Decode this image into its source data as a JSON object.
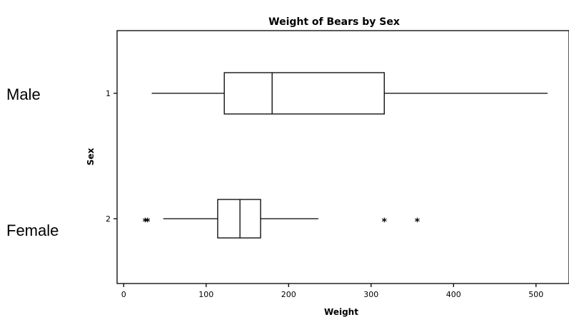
{
  "chart_data": {
    "type": "boxplot",
    "orientation": "horizontal",
    "title": "Weight of Bears by Sex",
    "xlabel": "Weight",
    "ylabel": "Sex",
    "xlim": [
      -8,
      540
    ],
    "xticks": [
      0,
      100,
      200,
      300,
      400,
      500
    ],
    "grid": false,
    "categories": [
      "1",
      "2"
    ],
    "annotations": [
      "Male",
      "Female"
    ],
    "outlier_marker": "*",
    "series": [
      {
        "category": "1",
        "min": 34,
        "q1": 122,
        "median": 180,
        "q3": 316,
        "max": 514,
        "outliers": []
      },
      {
        "category": "2",
        "min": 48,
        "q1": 114,
        "median": 141,
        "q3": 166,
        "max": 236,
        "outliers": [
          26,
          29,
          316,
          356
        ]
      }
    ]
  }
}
